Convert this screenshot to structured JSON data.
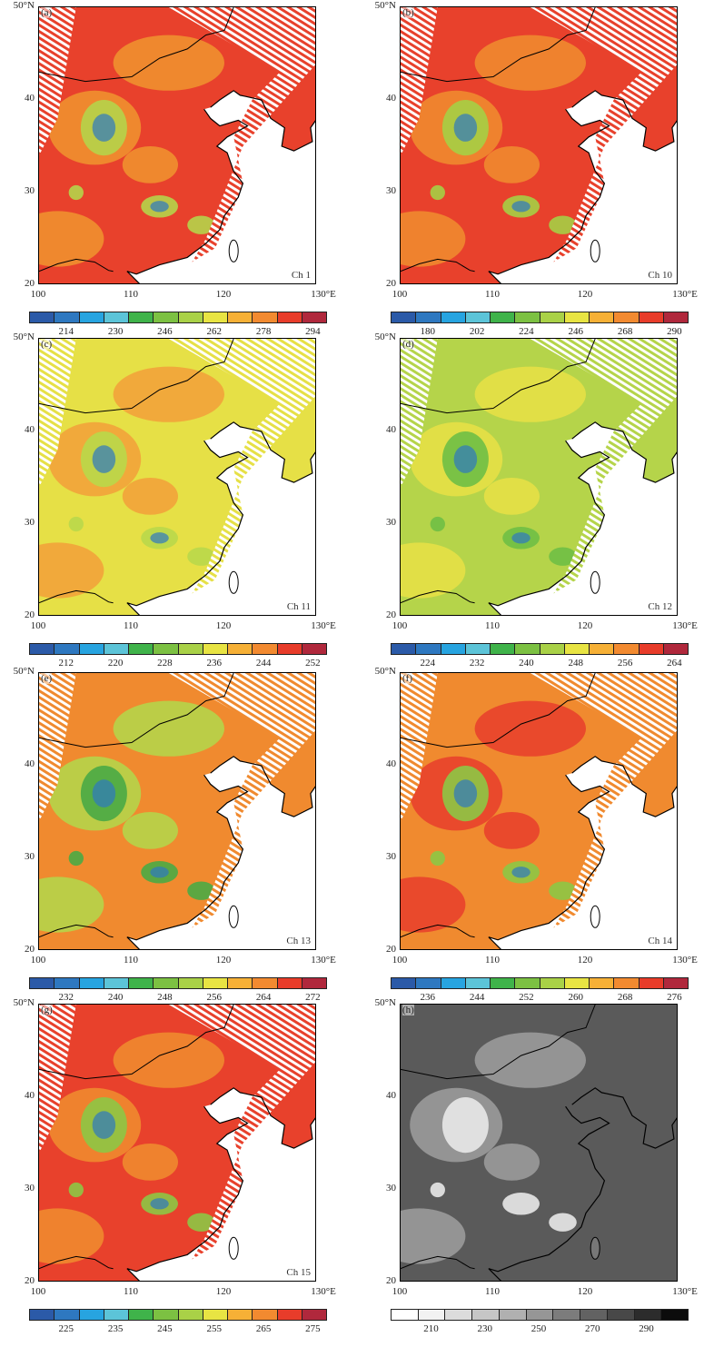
{
  "axes": {
    "lat_ticks": [
      "50°N",
      "40",
      "30",
      "20"
    ],
    "lon_ticks": [
      "100",
      "110",
      "120",
      "130°E"
    ]
  },
  "panels": [
    {
      "label": "(a)",
      "channel": "Ch 1",
      "cbar_labels": [
        "214",
        "230",
        "246",
        "262",
        "278",
        "294"
      ],
      "base": "#e8412c",
      "alt": "#f0902f",
      "cool": "#b5d44a"
    },
    {
      "label": "(b)",
      "channel": "Ch 10",
      "cbar_labels": [
        "180",
        "202",
        "224",
        "246",
        "268",
        "290"
      ],
      "base": "#e8412c",
      "alt": "#f08a2f",
      "cool": "#a5cf45"
    },
    {
      "label": "(c)",
      "channel": "Ch 11",
      "cbar_labels": [
        "212",
        "220",
        "228",
        "236",
        "244",
        "252"
      ],
      "base": "#e6e046",
      "alt": "#f2a33a",
      "cool": "#b9d84a"
    },
    {
      "label": "(d)",
      "channel": "Ch 12",
      "cbar_labels": [
        "224",
        "232",
        "240",
        "248",
        "256",
        "264"
      ],
      "base": "#b5d44a",
      "alt": "#e6e046",
      "cool": "#6fbf45"
    },
    {
      "label": "(e)",
      "channel": "Ch 13",
      "cbar_labels": [
        "232",
        "240",
        "248",
        "256",
        "264",
        "272"
      ],
      "base": "#f08a2f",
      "alt": "#b5d44a",
      "cool": "#4aaa45"
    },
    {
      "label": "(f)",
      "channel": "Ch 14",
      "cbar_labels": [
        "236",
        "244",
        "252",
        "260",
        "268",
        "276"
      ],
      "base": "#f08a2f",
      "alt": "#e8412c",
      "cool": "#8dc745"
    },
    {
      "label": "(g)",
      "channel": "Ch 15",
      "cbar_labels": [
        "225",
        "235",
        "245",
        "255",
        "265",
        "275"
      ],
      "base": "#e8412c",
      "alt": "#f08a2f",
      "cool": "#8dc745"
    },
    {
      "label": "(h)",
      "channel": "",
      "cbar_labels": [
        "210",
        "230",
        "250",
        "270",
        "290"
      ],
      "base": "#5a5a5a",
      "alt": "#9a9a9a",
      "cool": "#e8e8e8"
    }
  ],
  "colors": {
    "rainbow": [
      "#2b5aa8",
      "#2e78c0",
      "#27a4e0",
      "#5cc4d8",
      "#3fb34a",
      "#7cc142",
      "#a9d147",
      "#e8e443",
      "#f6b036",
      "#f28a30",
      "#e83c2a",
      "#b0283c"
    ],
    "gray": [
      "#ffffff",
      "#f2f2f2",
      "#dcdcdc",
      "#c6c6c6",
      "#b0b0b0",
      "#969696",
      "#7c7c7c",
      "#626262",
      "#484848",
      "#2c2c2c",
      "#0c0c0c"
    ]
  }
}
